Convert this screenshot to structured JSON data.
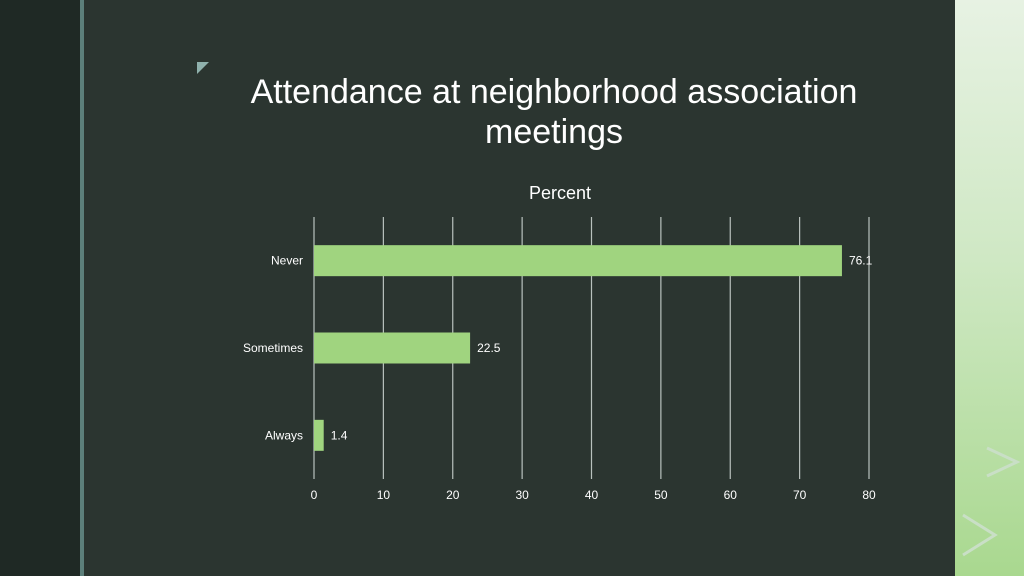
{
  "slide": {
    "title": "Attendance at neighborhood association meetings"
  },
  "colors": {
    "background": "#2b3530",
    "bar": "#a0d47f",
    "gridline": "#b9c2be",
    "text": "#ffffff"
  },
  "chart_data": {
    "type": "bar",
    "orientation": "horizontal",
    "title": "Percent",
    "categories": [
      "Never",
      "Sometimes",
      "Always"
    ],
    "values": [
      76.1,
      22.5,
      1.4
    ],
    "data_labels": [
      "76.1",
      "22.5",
      "1.4"
    ],
    "xlim": [
      0,
      80
    ],
    "x_ticks": [
      0,
      10,
      20,
      30,
      40,
      50,
      60,
      70,
      80
    ],
    "grid": true,
    "legend": "none"
  }
}
